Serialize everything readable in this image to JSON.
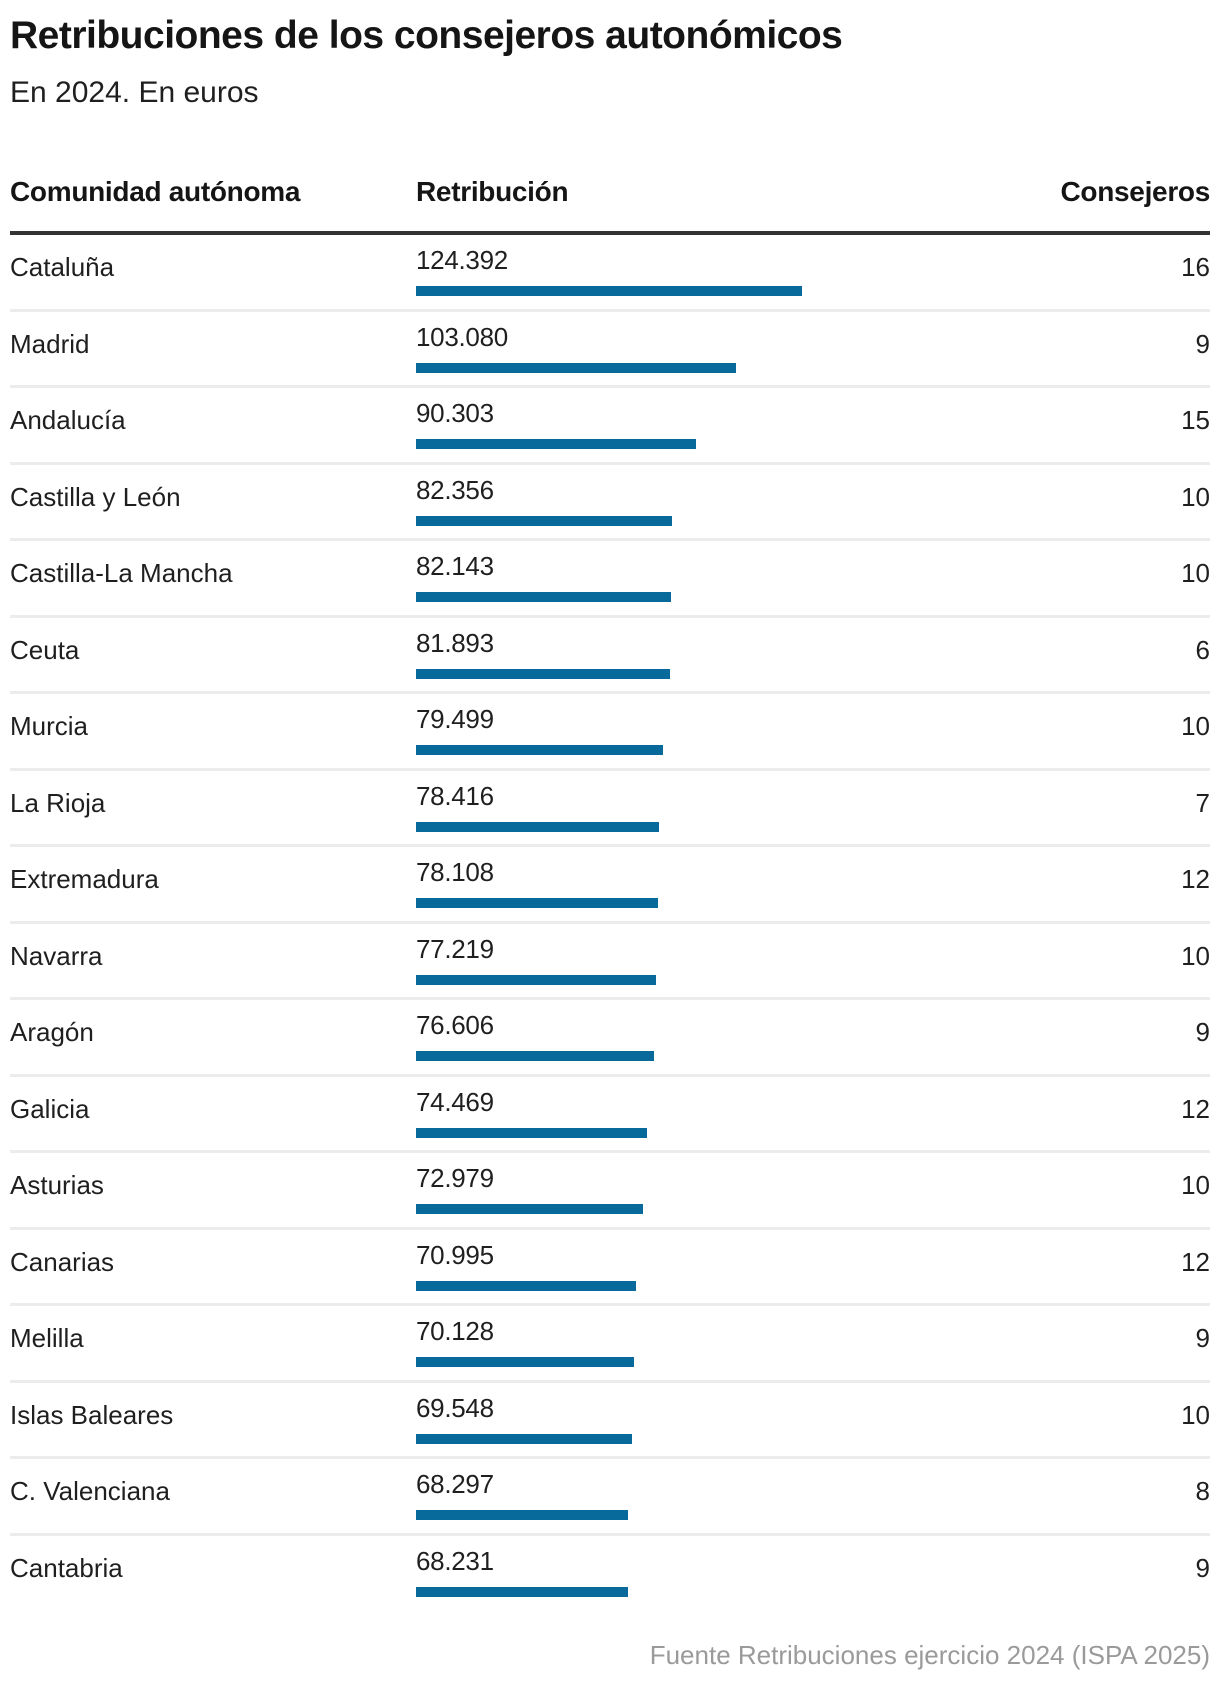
{
  "header": {
    "title": "Retribuciones de los consejeros autonómicos",
    "subtitle": "En 2024. En euros"
  },
  "table": {
    "columns": [
      "Comunidad autónoma",
      "Retribución",
      "Consejeros"
    ],
    "bar_color": "#08699b",
    "rows": [
      {
        "name": "Cataluña",
        "value_label": "124.392",
        "value": 124392,
        "consejeros": "16"
      },
      {
        "name": "Madrid",
        "value_label": "103.080",
        "value": 103080,
        "consejeros": "9"
      },
      {
        "name": "Andalucía",
        "value_label": "90.303",
        "value": 90303,
        "consejeros": "15"
      },
      {
        "name": "Castilla y León",
        "value_label": "82.356",
        "value": 82356,
        "consejeros": "10"
      },
      {
        "name": "Castilla-La Mancha",
        "value_label": "82.143",
        "value": 82143,
        "consejeros": "10"
      },
      {
        "name": "Ceuta",
        "value_label": "81.893",
        "value": 81893,
        "consejeros": "6"
      },
      {
        "name": "Murcia",
        "value_label": "79.499",
        "value": 79499,
        "consejeros": "10"
      },
      {
        "name": "La Rioja",
        "value_label": "78.416",
        "value": 78416,
        "consejeros": "7"
      },
      {
        "name": "Extremadura",
        "value_label": "78.108",
        "value": 78108,
        "consejeros": "12"
      },
      {
        "name": "Navarra",
        "value_label": "77.219",
        "value": 77219,
        "consejeros": "10"
      },
      {
        "name": "Aragón",
        "value_label": "76.606",
        "value": 76606,
        "consejeros": "9"
      },
      {
        "name": "Galicia",
        "value_label": "74.469",
        "value": 74469,
        "consejeros": "12"
      },
      {
        "name": "Asturias",
        "value_label": "72.979",
        "value": 72979,
        "consejeros": "10"
      },
      {
        "name": "Canarias",
        "value_label": "70.995",
        "value": 70995,
        "consejeros": "12"
      },
      {
        "name": "Melilla",
        "value_label": "70.128",
        "value": 70128,
        "consejeros": "9"
      },
      {
        "name": "Islas Baleares",
        "value_label": "69.548",
        "value": 69548,
        "consejeros": "10"
      },
      {
        "name": "C. Valenciana",
        "value_label": "68.297",
        "value": 68297,
        "consejeros": "8"
      },
      {
        "name": "Cantabria",
        "value_label": "68.231",
        "value": 68231,
        "consejeros": "9"
      }
    ]
  },
  "footer": {
    "source": "Fuente Retribuciones ejercicio 2024 (ISPA 2025)"
  },
  "chart_data": {
    "type": "table",
    "title": "Retribuciones de los consejeros autonómicos",
    "subtitle": "En 2024. En euros",
    "columns": [
      "Comunidad autónoma",
      "Retribución",
      "Consejeros"
    ],
    "categories": [
      "Cataluña",
      "Madrid",
      "Andalucía",
      "Castilla y León",
      "Castilla-La Mancha",
      "Ceuta",
      "Murcia",
      "La Rioja",
      "Extremadura",
      "Navarra",
      "Aragón",
      "Galicia",
      "Asturias",
      "Canarias",
      "Melilla",
      "Islas Baleares",
      "C. Valenciana",
      "Cantabria"
    ],
    "series": [
      {
        "name": "Retribución",
        "values": [
          124392,
          103080,
          90303,
          82356,
          82143,
          81893,
          79499,
          78416,
          78108,
          77219,
          76606,
          74469,
          72979,
          70995,
          70128,
          69548,
          68297,
          68231
        ]
      },
      {
        "name": "Consejeros",
        "values": [
          16,
          9,
          15,
          10,
          10,
          6,
          10,
          7,
          12,
          10,
          9,
          12,
          10,
          12,
          9,
          10,
          8,
          9
        ]
      }
    ],
    "xlabel": "",
    "ylabel": "Retribución (euros)",
    "source": "Fuente Retribuciones ejercicio 2024 (ISPA 2025)"
  }
}
